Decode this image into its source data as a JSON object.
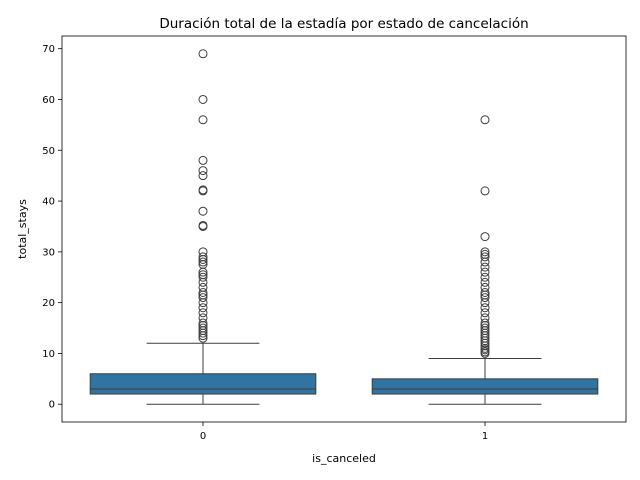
{
  "chart_data": {
    "type": "box",
    "title": "Duración total de la estadía por estado de cancelación",
    "xlabel": "is_canceled",
    "ylabel": "total_stays",
    "categories": [
      "0",
      "1"
    ],
    "ylim": [
      -3.5,
      72.5
    ],
    "yticks": [
      0,
      10,
      20,
      30,
      40,
      50,
      60,
      70
    ],
    "grid": false,
    "box_color": "#3274a1",
    "line_color": "#3d3d3d",
    "boxes": [
      {
        "category": "0",
        "whisker_low": 0,
        "q1": 2,
        "median": 3,
        "q3": 6,
        "whisker_high": 12,
        "outliers": [
          13,
          13.5,
          14,
          14.5,
          15,
          15.5,
          16,
          17,
          18,
          19,
          20,
          21,
          21.5,
          22,
          23,
          24,
          25,
          25.5,
          26,
          27.5,
          28,
          28.5,
          29,
          30,
          35,
          35.2,
          38,
          42,
          42.2,
          45,
          46,
          48,
          56,
          60,
          69
        ]
      },
      {
        "category": "1",
        "whisker_low": 0,
        "q1": 2,
        "median": 3,
        "q3": 5,
        "whisker_high": 9,
        "outliers": [
          10,
          10.3,
          10.7,
          11,
          11.5,
          12,
          12.5,
          13,
          13.5,
          14,
          14.5,
          15,
          15.5,
          16,
          17,
          18,
          19,
          20,
          21,
          21.5,
          22,
          23,
          24,
          25,
          26,
          27,
          28,
          29,
          29.5,
          30,
          33,
          42,
          56
        ]
      }
    ]
  }
}
